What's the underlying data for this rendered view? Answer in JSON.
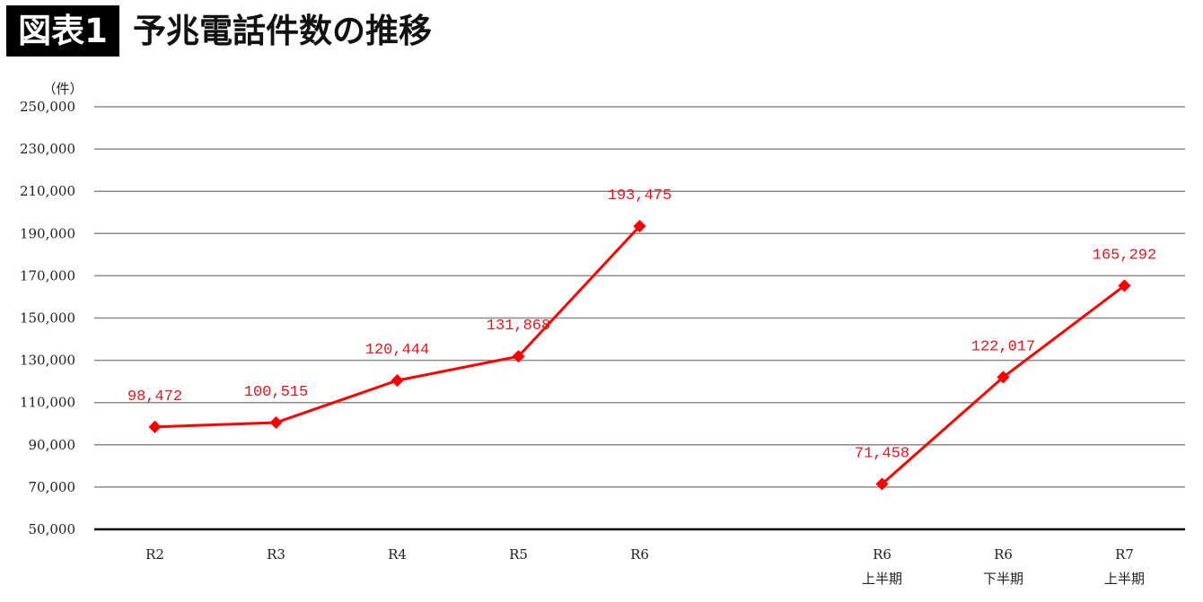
{
  "header": {
    "badge": "図表1",
    "title": "予兆電話件数の推移"
  },
  "chart_data": {
    "type": "line",
    "title": "予兆電話件数の推移",
    "ylabel": "（件）",
    "xlabel": "",
    "ylim": [
      50000,
      250000
    ],
    "yticks": [
      "250,000",
      "230,000",
      "210,000",
      "190,000",
      "170,000",
      "150,000",
      "130,000",
      "110,000",
      "90,000",
      "70,000",
      "50,000"
    ],
    "ytick_values": [
      250000,
      230000,
      210000,
      190000,
      170000,
      150000,
      130000,
      110000,
      90000,
      70000,
      50000
    ],
    "grid": true,
    "color": "#ff0000",
    "series": [
      {
        "name": "年度",
        "categories": [
          [
            "R2"
          ],
          [
            "R3"
          ],
          [
            "R4"
          ],
          [
            "R5"
          ],
          [
            "R6"
          ]
        ],
        "slots": [
          0,
          1,
          2,
          3,
          4
        ],
        "values": [
          98472,
          100515,
          120444,
          131868,
          193475
        ],
        "labels": [
          "98,472",
          "100,515",
          "120,444",
          "131,868",
          "193,475"
        ]
      },
      {
        "name": "半期",
        "categories": [
          [
            "R6",
            "上半期"
          ],
          [
            "R6",
            "下半期"
          ],
          [
            "R7",
            "上半期"
          ]
        ],
        "slots": [
          6,
          7,
          8
        ],
        "values": [
          71458,
          122017,
          165292
        ],
        "labels": [
          "71,458",
          "122,017",
          "165,292"
        ]
      }
    ]
  }
}
